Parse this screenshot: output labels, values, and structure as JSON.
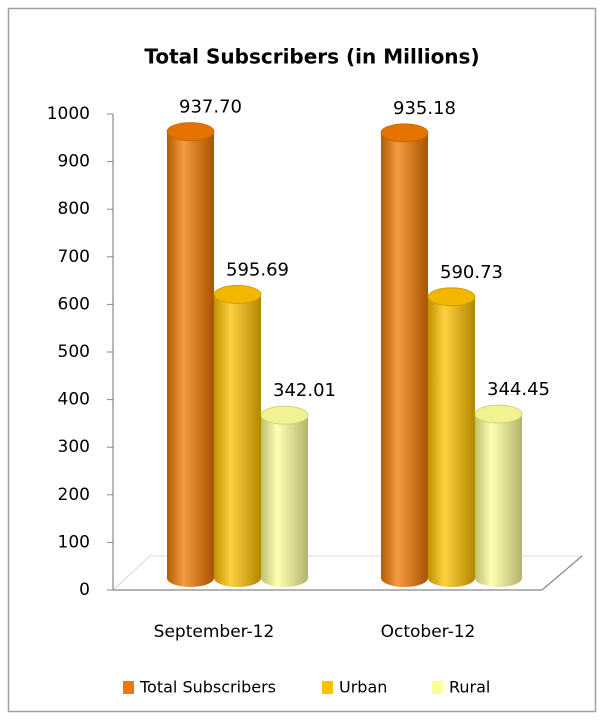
{
  "chart_data": {
    "type": "bar",
    "title": "Total Subscribers (in Millions)",
    "categories": [
      "September-12",
      "October-12"
    ],
    "series": [
      {
        "name": "Total Subscribers",
        "color": "#f07800",
        "values": [
          937.7,
          935.18
        ],
        "value_labels": [
          "937.70",
          "935.18"
        ]
      },
      {
        "name": "Urban",
        "color": "#ffc000",
        "values": [
          595.69,
          590.73
        ],
        "value_labels": [
          "595.69",
          "590.73"
        ]
      },
      {
        "name": "Rural",
        "color": "#ffff99",
        "values": [
          342.01,
          344.45
        ],
        "value_labels": [
          "342.01",
          "344.45"
        ]
      }
    ],
    "ylim": [
      0,
      1000
    ],
    "yticks": [
      0,
      100,
      200,
      300,
      400,
      500,
      600,
      700,
      800,
      900,
      1000
    ],
    "grid": false,
    "legend": "bottom"
  }
}
